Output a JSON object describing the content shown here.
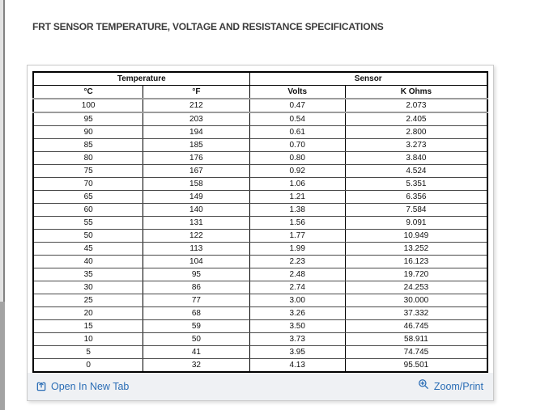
{
  "page": {
    "title": "FRT SENSOR TEMPERATURE, VOLTAGE AND RESISTANCE SPECIFICATIONS"
  },
  "table": {
    "group_headers": [
      {
        "label": "Temperature",
        "span": 2
      },
      {
        "label": "Sensor",
        "span": 2
      }
    ],
    "columns": [
      "°C",
      "°F",
      "Volts",
      "K Ohms"
    ],
    "rows": [
      [
        "100",
        "212",
        "0.47",
        "2.073"
      ],
      [
        "95",
        "203",
        "0.54",
        "2.405"
      ],
      [
        "90",
        "194",
        "0.61",
        "2.800"
      ],
      [
        "85",
        "185",
        "0.70",
        "3.273"
      ],
      [
        "80",
        "176",
        "0.80",
        "3.840"
      ],
      [
        "75",
        "167",
        "0.92",
        "4.524"
      ],
      [
        "70",
        "158",
        "1.06",
        "5.351"
      ],
      [
        "65",
        "149",
        "1.21",
        "6.356"
      ],
      [
        "60",
        "140",
        "1.38",
        "7.584"
      ],
      [
        "55",
        "131",
        "1.56",
        "9.091"
      ],
      [
        "50",
        "122",
        "1.77",
        "10.949"
      ],
      [
        "45",
        "113",
        "1.99",
        "13.252"
      ],
      [
        "40",
        "104",
        "2.23",
        "16.123"
      ],
      [
        "35",
        "95",
        "2.48",
        "19.720"
      ],
      [
        "30",
        "86",
        "2.74",
        "24.253"
      ],
      [
        "25",
        "77",
        "3.00",
        "30.000"
      ],
      [
        "20",
        "68",
        "3.26",
        "37.332"
      ],
      [
        "15",
        "59",
        "3.50",
        "46.745"
      ],
      [
        "10",
        "50",
        "3.73",
        "58.911"
      ],
      [
        "5",
        "41",
        "3.95",
        "74.745"
      ],
      [
        "0",
        "32",
        "4.13",
        "95.501"
      ]
    ]
  },
  "footer": {
    "open_in_new_tab_label": "Open In New Tab",
    "zoom_print_label": "Zoom/Print"
  },
  "icons": {
    "open_in_new_tab": "open-in-new-tab-icon",
    "zoom": "zoom-magnifier-plus-icon"
  },
  "colors": {
    "link_blue": "#2a6db5",
    "title_gray": "#3c3c3c",
    "footer_bg": "#eff1f4"
  }
}
